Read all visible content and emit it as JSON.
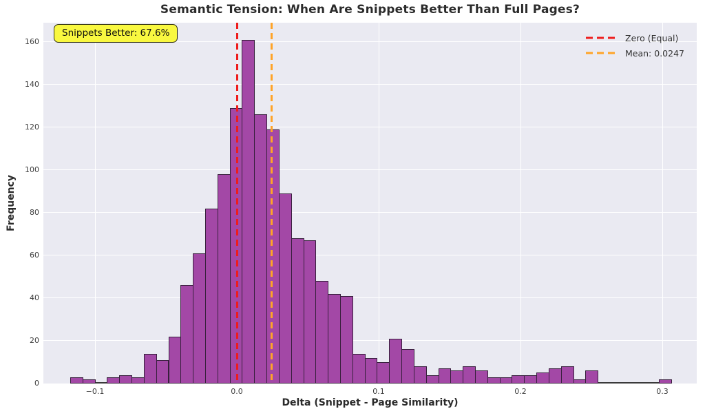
{
  "figure": {
    "title": "Semantic Tension: When Are Snippets Better Than Full Pages?"
  },
  "axes": {
    "xlabel": "Delta (Snippet - Page Similarity)",
    "ylabel": "Frequency"
  },
  "annotation": {
    "text": "Snippets Better: 67.6%",
    "bg_color": "#f9f840",
    "border_color": "#2e2e12"
  },
  "legend": {
    "items": [
      {
        "label": "Zero (Equal)",
        "color": "#ee1c1c"
      },
      {
        "label": "Mean: 0.0247",
        "color": "#ffa428"
      }
    ],
    "position": "upper right",
    "frame": false
  },
  "chart_data": {
    "type": "bar",
    "subtype": "histogram",
    "title": "Semantic Tension: When Are Snippets Better Than Full Pages?",
    "xlabel": "Delta (Snippet - Page Similarity)",
    "ylabel": "Frequency",
    "bin_start": -0.1175,
    "bin_width": 0.00865,
    "counts": [
      3,
      2,
      0,
      3,
      4,
      3,
      14,
      11,
      22,
      46,
      61,
      82,
      98,
      129,
      161,
      126,
      119,
      89,
      68,
      67,
      48,
      42,
      41,
      14,
      12,
      10,
      21,
      16,
      8,
      4,
      7,
      6,
      8,
      6,
      3,
      3,
      4,
      4,
      5,
      7,
      8,
      2,
      6,
      0,
      0,
      0,
      0,
      0,
      2
    ],
    "xlim": [
      -0.1364,
      0.3243
    ],
    "ylim": [
      0,
      169
    ],
    "x_ticks": [
      {
        "value": -0.1,
        "label": "−0.1"
      },
      {
        "value": 0.0,
        "label": "0.0"
      },
      {
        "value": 0.1,
        "label": "0.1"
      },
      {
        "value": 0.2,
        "label": "0.2"
      },
      {
        "value": 0.3,
        "label": "0.3"
      }
    ],
    "y_ticks": [
      0,
      20,
      40,
      60,
      80,
      100,
      120,
      140,
      160
    ],
    "ref_lines": [
      {
        "value": 0.0,
        "color": "#ee1c1c",
        "style": "dashed",
        "label": "Zero (Equal)"
      },
      {
        "value": 0.0247,
        "color": "#ffa428",
        "style": "dashed",
        "label": "Mean: 0.0247"
      }
    ],
    "mean": 0.0247,
    "snippets_better_pct": 67.6,
    "grid": true,
    "plot_bg": "#eaeaf2",
    "grid_color": "#ffffff",
    "bar_fill": "#a348a6",
    "bar_edge": "#371f3c"
  }
}
